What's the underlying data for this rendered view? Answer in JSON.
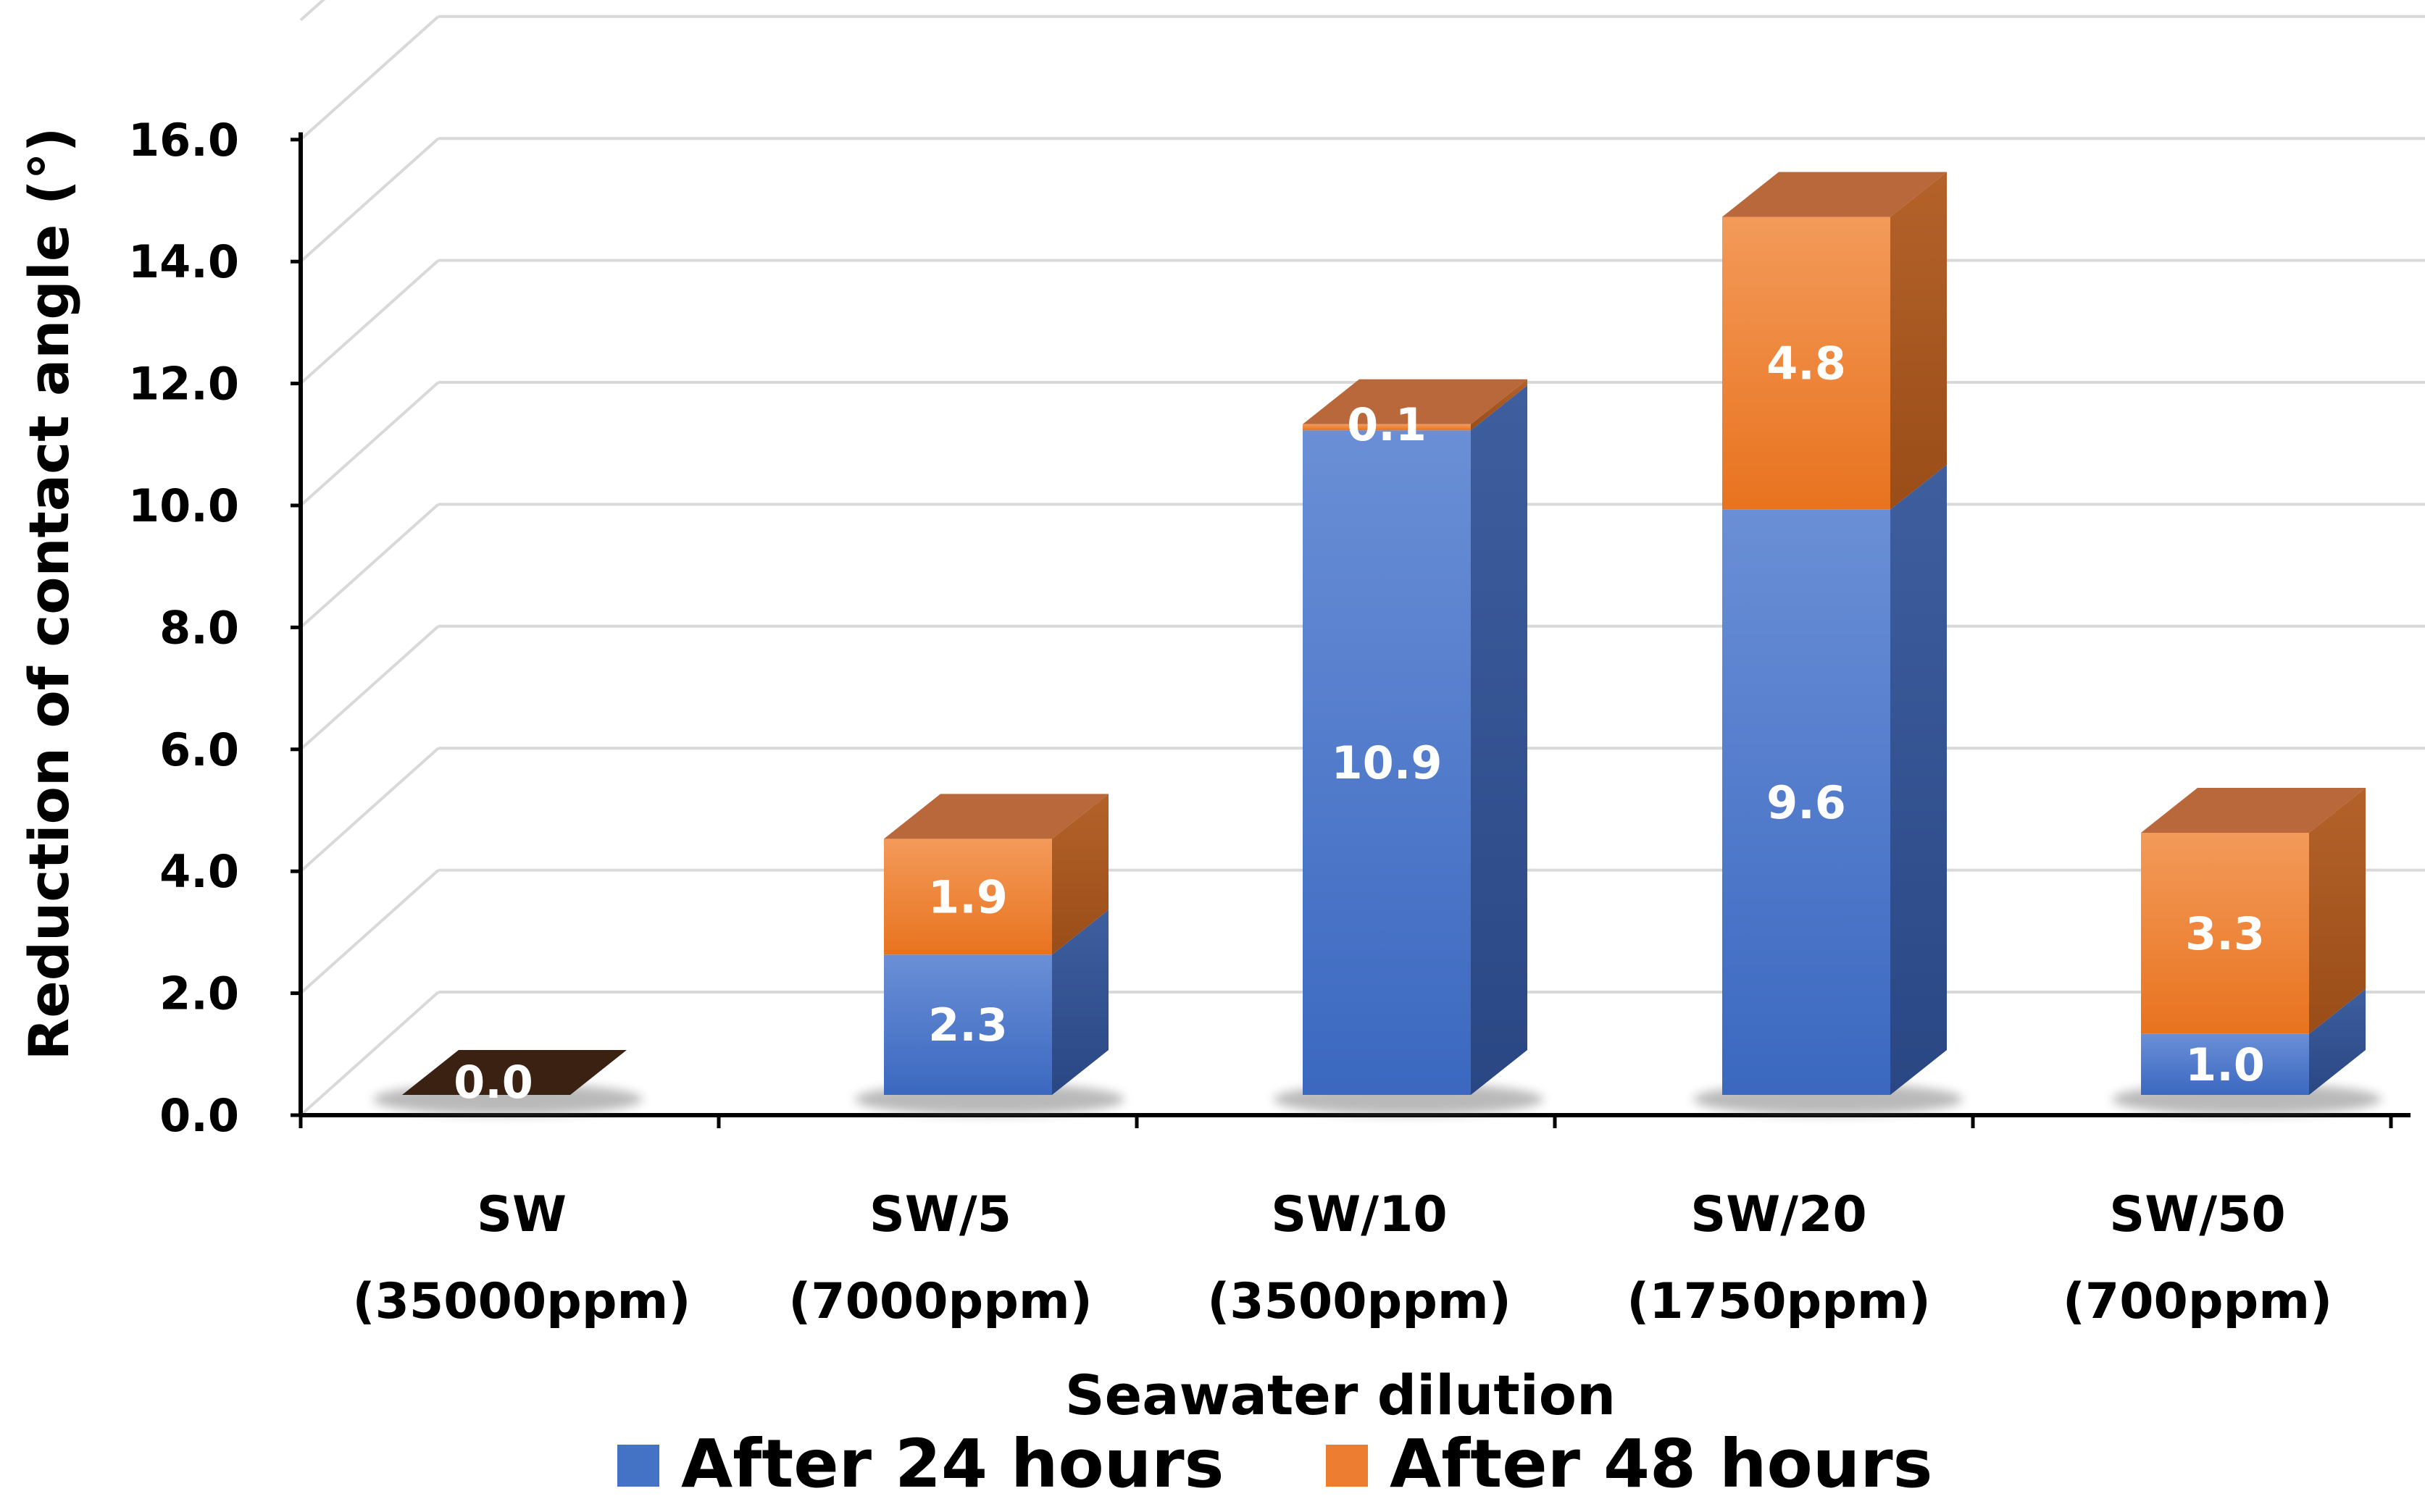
{
  "chart_data": {
    "type": "bar",
    "stacked": true,
    "style": "3d-column",
    "categories": [
      {
        "line1": "SW",
        "line2": "(35000ppm)"
      },
      {
        "line1": "SW/5",
        "line2": "(7000ppm)"
      },
      {
        "line1": "SW/10",
        "line2": "(3500ppm)"
      },
      {
        "line1": "SW/20",
        "line2": "(1750ppm)"
      },
      {
        "line1": "SW/50",
        "line2": "(700ppm)"
      }
    ],
    "series": [
      {
        "name": "After 24 hours",
        "values": [
          0.0,
          2.3,
          10.9,
          9.6,
          1.0
        ],
        "labels": [
          "0.0",
          "2.3",
          "10.9",
          "9.6",
          "1.0"
        ],
        "color": "#4472C4"
      },
      {
        "name": "After 48 hours",
        "values": [
          0.0,
          1.9,
          0.1,
          4.8,
          3.3
        ],
        "labels": [
          "",
          "1.9",
          "0.1",
          "4.8",
          "3.3"
        ],
        "color": "#ED7D31"
      }
    ],
    "title": "",
    "xlabel": "Seawater dilution",
    "ylabel": "Reduction of contact angle (°)",
    "ylim": [
      0,
      16
    ],
    "yticks": [
      "0.0",
      "2.0",
      "4.0",
      "6.0",
      "8.0",
      "10.0",
      "12.0",
      "14.0",
      "16.0"
    ],
    "grid": true,
    "legend_position": "bottom-center"
  }
}
